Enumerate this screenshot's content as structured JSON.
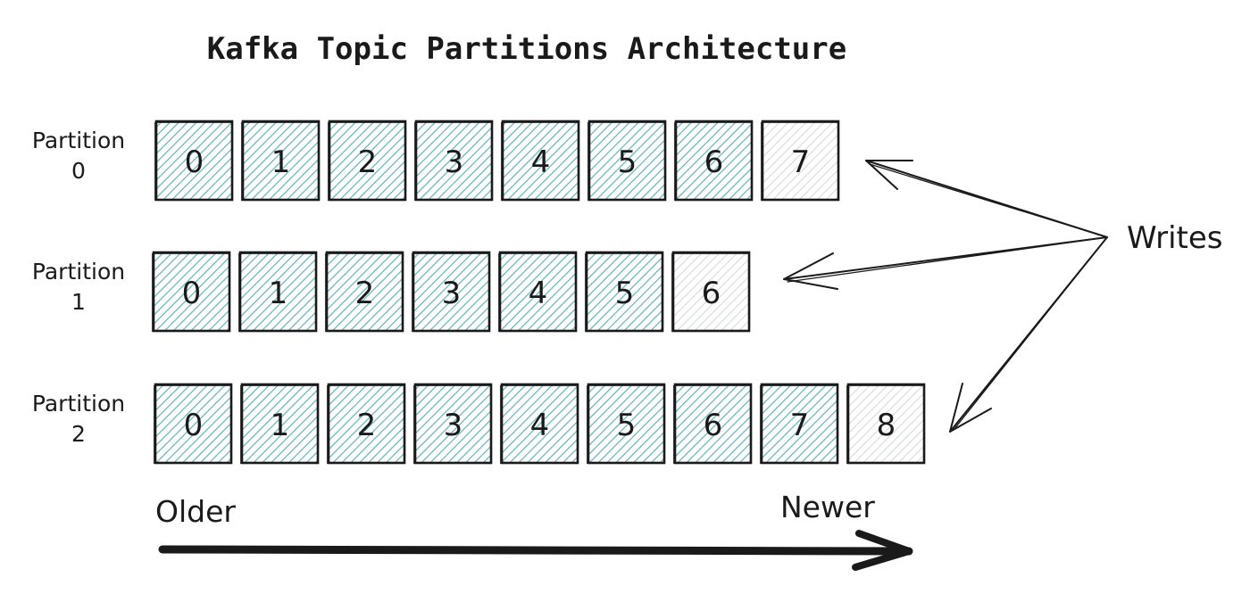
{
  "title": "Kafka Topic Partitions Architecture",
  "colors": {
    "filled": "#5fb3b9",
    "new": "#c9cdcd",
    "ink": "#1a1a1a"
  },
  "partitions": [
    {
      "label_line1": "Partition",
      "label_line2": "0",
      "offsets": [
        "0",
        "1",
        "2",
        "3",
        "4",
        "5",
        "6",
        "7"
      ]
    },
    {
      "label_line1": "Partition",
      "label_line2": "1",
      "offsets": [
        "0",
        "1",
        "2",
        "3",
        "4",
        "5",
        "6"
      ]
    },
    {
      "label_line1": "Partition",
      "label_line2": "2",
      "offsets": [
        "0",
        "1",
        "2",
        "3",
        "4",
        "5",
        "6",
        "7",
        "8"
      ]
    }
  ],
  "writes_label": "Writes",
  "axis": {
    "older_label": "Older",
    "newer_label": "Newer"
  }
}
